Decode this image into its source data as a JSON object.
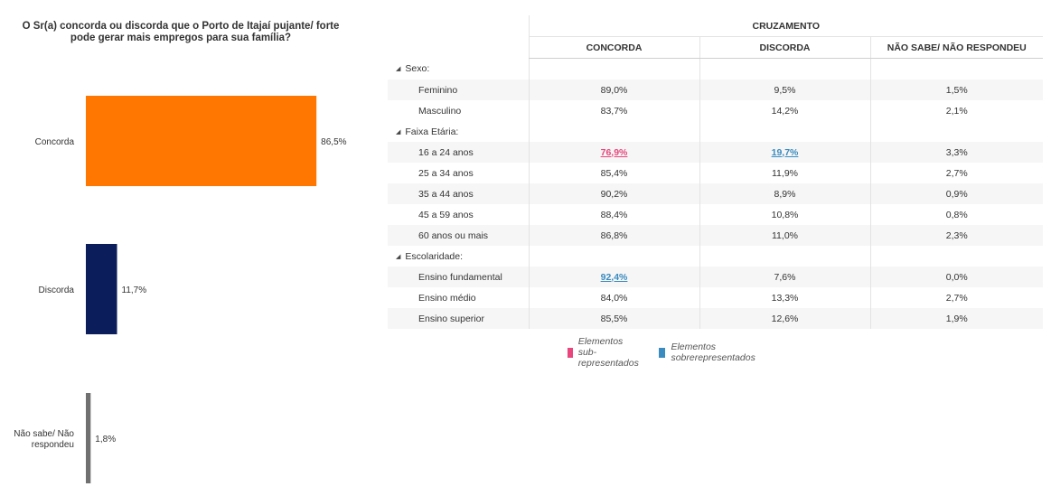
{
  "chart_data": {
    "type": "bar",
    "orientation": "horizontal",
    "title_lines": [
      "O Sr(a) concorda ou discorda que o Porto de Itajaí pujante/ forte",
      "pode gerar mais empregos para sua família?"
    ],
    "categories": [
      "Concorda",
      "Discorda",
      "Não sabe/ Não respondeu"
    ],
    "category_lines": [
      [
        "Concorda"
      ],
      [
        "Discorda"
      ],
      [
        "Não sabe/ Não",
        "respondeu"
      ]
    ],
    "values": [
      86.5,
      11.7,
      1.8
    ],
    "value_labels": [
      "86,5%",
      "11,7%",
      "1,8%"
    ],
    "colors": [
      "#ff7700",
      "#0b1e5b",
      "#707070"
    ],
    "xlim": [
      0,
      100
    ]
  },
  "table": {
    "group_header": "CRUZAMENTO",
    "columns": [
      "CONCORDA",
      "DISCORDA",
      "NÃO SABE/ NÃO RESPONDEU"
    ],
    "sections": [
      {
        "name": "Sexo:",
        "rows": [
          {
            "label": "Feminino",
            "values": [
              "89,0%",
              "9,5%",
              "1,5%"
            ],
            "flags": [
              "",
              "",
              ""
            ]
          },
          {
            "label": "Masculino",
            "values": [
              "83,7%",
              "14,2%",
              "2,1%"
            ],
            "flags": [
              "",
              "",
              ""
            ]
          }
        ]
      },
      {
        "name": "Faixa Etária:",
        "rows": [
          {
            "label": "16 a 24 anos",
            "values": [
              "76,9%",
              "19,7%",
              "3,3%"
            ],
            "flags": [
              "under",
              "over",
              ""
            ]
          },
          {
            "label": "25 a 34 anos",
            "values": [
              "85,4%",
              "11,9%",
              "2,7%"
            ],
            "flags": [
              "",
              "",
              ""
            ]
          },
          {
            "label": "35 a 44 anos",
            "values": [
              "90,2%",
              "8,9%",
              "0,9%"
            ],
            "flags": [
              "",
              "",
              ""
            ]
          },
          {
            "label": "45 a 59 anos",
            "values": [
              "88,4%",
              "10,8%",
              "0,8%"
            ],
            "flags": [
              "",
              "",
              ""
            ]
          },
          {
            "label": "60 anos ou mais",
            "values": [
              "86,8%",
              "11,0%",
              "2,3%"
            ],
            "flags": [
              "",
              "",
              ""
            ]
          }
        ]
      },
      {
        "name": "Escolaridade:",
        "rows": [
          {
            "label": "Ensino fundamental",
            "values": [
              "92,4%",
              "7,6%",
              "0,0%"
            ],
            "flags": [
              "over",
              "",
              ""
            ]
          },
          {
            "label": "Ensino médio",
            "values": [
              "84,0%",
              "13,3%",
              "2,7%"
            ],
            "flags": [
              "",
              "",
              ""
            ]
          },
          {
            "label": "Ensino superior",
            "values": [
              "85,5%",
              "12,6%",
              "1,9%"
            ],
            "flags": [
              "",
              "",
              ""
            ]
          }
        ]
      }
    ]
  },
  "legend": {
    "under_label": "Elementos sub-representados",
    "over_label": "Elementos sobrerepresentados",
    "under_color": "#e8467c",
    "over_color": "#3a8bc0"
  }
}
